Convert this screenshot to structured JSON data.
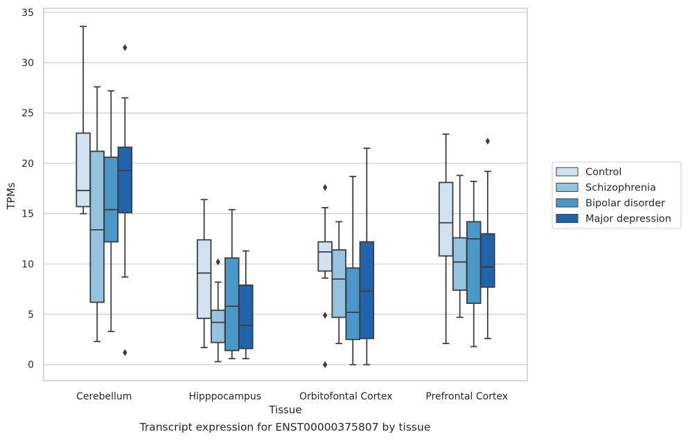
{
  "chart_data": {
    "type": "boxplot",
    "title": "",
    "caption": "Transcript expression for ENST00000375807 by tissue",
    "xlabel": "Tissue",
    "ylabel": "TPMs",
    "ylim": [
      -1.6,
      35.4
    ],
    "yticks": [
      0,
      5,
      10,
      15,
      20,
      25,
      30,
      35
    ],
    "grid": "y",
    "legend_position": "right",
    "categories": [
      "Cerebellum",
      "Hipppocampus",
      "Orbitofontal Cortex",
      "Prefrontal Cortex"
    ],
    "series": [
      {
        "name": "Control",
        "color": "#d0e1f2",
        "boxes": [
          {
            "whislo": 15.0,
            "q1": 15.7,
            "med": 17.3,
            "q3": 23.0,
            "whishi": 33.6,
            "fliers": []
          },
          {
            "whislo": 1.7,
            "q1": 4.6,
            "med": 9.1,
            "q3": 12.4,
            "whishi": 16.4,
            "fliers": []
          },
          {
            "whislo": 8.6,
            "q1": 9.3,
            "med": 11.2,
            "q3": 12.2,
            "whishi": 15.6,
            "fliers": [
              17.6,
              4.9,
              0.0
            ]
          },
          {
            "whislo": 2.1,
            "q1": 10.8,
            "med": 14.1,
            "q3": 18.1,
            "whishi": 22.9,
            "fliers": []
          }
        ]
      },
      {
        "name": "Schizophrenia",
        "color": "#94c4df",
        "boxes": [
          {
            "whislo": 2.3,
            "q1": 6.2,
            "med": 13.4,
            "q3": 21.2,
            "whishi": 27.6,
            "fliers": []
          },
          {
            "whislo": 0.3,
            "q1": 2.2,
            "med": 4.2,
            "q3": 5.4,
            "whishi": 8.2,
            "fliers": [
              10.2
            ]
          },
          {
            "whislo": 2.1,
            "q1": 4.7,
            "med": 8.5,
            "q3": 11.4,
            "whishi": 14.2,
            "fliers": []
          },
          {
            "whislo": 4.7,
            "q1": 7.4,
            "med": 10.2,
            "q3": 12.6,
            "whishi": 18.8,
            "fliers": []
          }
        ]
      },
      {
        "name": "Bipolar disorder",
        "color": "#4a98c9",
        "boxes": [
          {
            "whislo": 3.3,
            "q1": 12.2,
            "med": 15.4,
            "q3": 20.6,
            "whishi": 27.2,
            "fliers": []
          },
          {
            "whislo": 0.6,
            "q1": 1.4,
            "med": 5.8,
            "q3": 10.6,
            "whishi": 15.4,
            "fliers": []
          },
          {
            "whislo": 0.0,
            "q1": 2.5,
            "med": 5.2,
            "q3": 9.6,
            "whishi": 18.7,
            "fliers": []
          },
          {
            "whislo": 1.8,
            "q1": 6.1,
            "med": 12.5,
            "q3": 14.2,
            "whishi": 18.2,
            "fliers": []
          }
        ]
      },
      {
        "name": "Major depression",
        "color": "#2164ab",
        "boxes": [
          {
            "whislo": 8.7,
            "q1": 15.1,
            "med": 19.3,
            "q3": 21.6,
            "whishi": 26.5,
            "fliers": [
              31.5,
              1.2
            ]
          },
          {
            "whislo": 0.6,
            "q1": 1.6,
            "med": 3.9,
            "q3": 7.9,
            "whishi": 11.3,
            "fliers": []
          },
          {
            "whislo": 0.0,
            "q1": 2.6,
            "med": 7.3,
            "q3": 12.2,
            "whishi": 21.5,
            "fliers": []
          },
          {
            "whislo": 2.6,
            "q1": 7.7,
            "med": 9.7,
            "q3": 13.0,
            "whishi": 19.2,
            "fliers": [
              22.2
            ]
          }
        ]
      }
    ]
  }
}
